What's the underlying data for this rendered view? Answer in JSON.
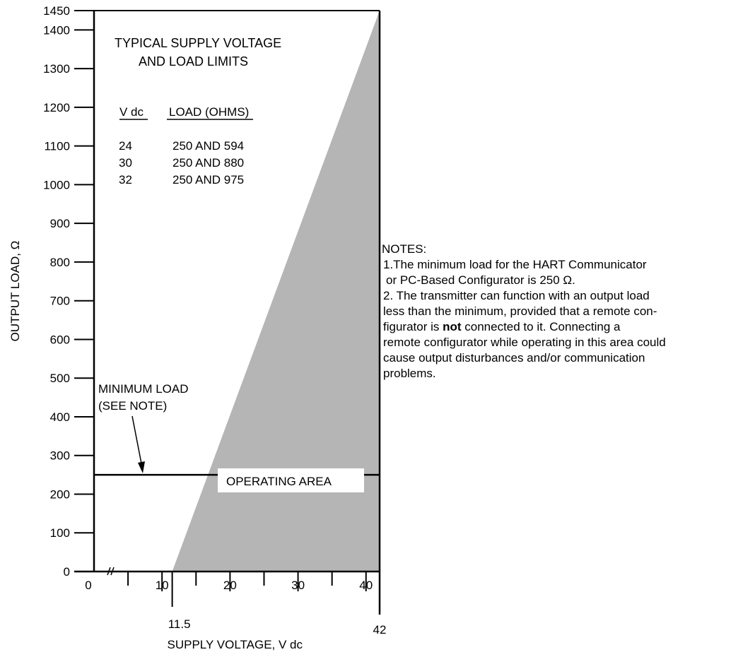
{
  "chart_data": {
    "type": "area",
    "xlabel": "SUPPLY VOLTAGE, V dc",
    "ylabel": "OUTPUT LOAD, Ω",
    "xlim": [
      0,
      42
    ],
    "ylim": [
      0,
      1450
    ],
    "x_ticks": [
      {
        "value": 0,
        "label": "0"
      },
      {
        "value": 10,
        "label": "10"
      },
      {
        "value": 11.5,
        "label": "11.5"
      },
      {
        "value": 20,
        "label": "20"
      },
      {
        "value": 30,
        "label": "30"
      },
      {
        "value": 40,
        "label": "40"
      },
      {
        "value": 42,
        "label": "42"
      }
    ],
    "x_minor_ticks": [
      5,
      15,
      25,
      35
    ],
    "y_ticks": [
      0,
      100,
      200,
      300,
      400,
      500,
      600,
      700,
      800,
      900,
      1000,
      1100,
      1200,
      1300,
      1400,
      1450
    ],
    "operating_area_boundary": [
      {
        "x": 11.5,
        "y": 0
      },
      {
        "x": 42,
        "y": 1450
      },
      {
        "x": 42,
        "y": 0
      }
    ],
    "minimum_load": 250,
    "shade_color": "#b5b5b5",
    "inset_title": [
      "TYPICAL SUPPLY VOLTAGE",
      "AND LOAD LIMITS"
    ],
    "inset_table": {
      "headers": [
        "V dc",
        "LOAD (OHMS)"
      ],
      "rows": [
        [
          "24",
          "250 AND 594"
        ],
        [
          "30",
          "250 AND 880"
        ],
        [
          "32",
          "250 AND 975"
        ]
      ]
    },
    "annotations": {
      "min_load": [
        "MINIMUM LOAD",
        "(SEE NOTE)"
      ],
      "operating_area": "OPERATING AREA"
    }
  },
  "notes": {
    "heading": "NOTES:",
    "note1_line1": "1.The minimum load for the HART Communicator",
    "note1_line2": "or PC-Based Configurator is 250 Ω.",
    "note2_line1": "2. The transmitter can function with an output load",
    "note2_line2": "less than the minimum, provided that a remote con-",
    "note2_line3a": "figurator is ",
    "note2_line3b": "not",
    "note2_line3c": " connected to it. Connecting a",
    "note2_line4": "remote configurator while operating in this area could",
    "note2_line5": "cause output disturbances and/or communication",
    "note2_line6": "problems."
  }
}
